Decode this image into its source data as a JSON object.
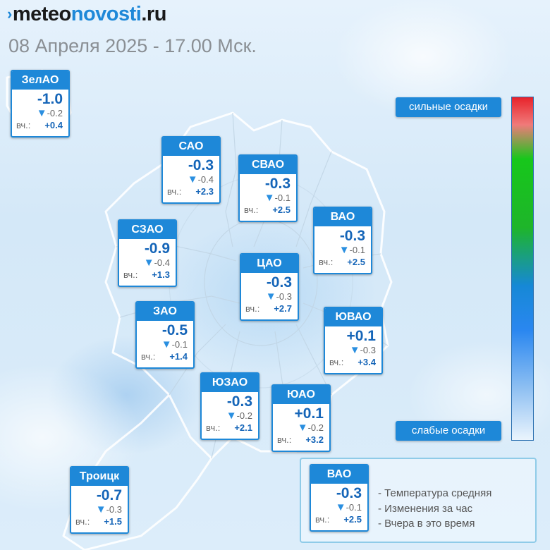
{
  "header": {
    "logo_mark": "›",
    "logo_part1": "meteo",
    "logo_part2": "novosti",
    "logo_part3": ".ru",
    "subtitle": "08 Апреля 2025 - 17.00 Мск."
  },
  "scale": {
    "top_label": "сильные осадки",
    "bottom_label": "слабые осадки"
  },
  "yesterday_label": "вч.:",
  "change_arrow": "▼",
  "districts": [
    {
      "name": "ЗелАО",
      "temp": "-1.0",
      "change": "-0.2",
      "yesterday": "+0.4"
    },
    {
      "name": "САО",
      "temp": "-0.3",
      "change": "-0.4",
      "yesterday": "+2.3"
    },
    {
      "name": "СВАО",
      "temp": "-0.3",
      "change": "-0.1",
      "yesterday": "+2.5"
    },
    {
      "name": "ВАО",
      "temp": "-0.3",
      "change": "-0.1",
      "yesterday": "+2.5"
    },
    {
      "name": "СЗАО",
      "temp": "-0.9",
      "change": "-0.4",
      "yesterday": "+1.3"
    },
    {
      "name": "ЦАО",
      "temp": "-0.3",
      "change": "-0.3",
      "yesterday": "+2.7"
    },
    {
      "name": "ЗАО",
      "temp": "-0.5",
      "change": "-0.1",
      "yesterday": "+1.4"
    },
    {
      "name": "ЮВАО",
      "temp": "+0.1",
      "change": "-0.3",
      "yesterday": "+3.4"
    },
    {
      "name": "ЮЗАО",
      "temp": "-0.3",
      "change": "-0.2",
      "yesterday": "+2.1"
    },
    {
      "name": "ЮАО",
      "temp": "+0.1",
      "change": "-0.2",
      "yesterday": "+3.2"
    },
    {
      "name": "Троицк",
      "temp": "-0.7",
      "change": "-0.3",
      "yesterday": "+1.5"
    }
  ],
  "legend": {
    "sample": {
      "name": "ВАО",
      "temp": "-0.3",
      "change": "-0.1",
      "yesterday": "+2.5"
    },
    "line1": "- Температура средняя",
    "line2": "- Изменения за час",
    "line3": "- Вчера в это время"
  },
  "colors": {
    "accent": "#1e88d8",
    "temp_text": "#1565b8",
    "title_gray": "#8a8f94",
    "scale_top": "#e8232b",
    "scale_mid": "#17c71b",
    "scale_low": "#2a87f0"
  }
}
